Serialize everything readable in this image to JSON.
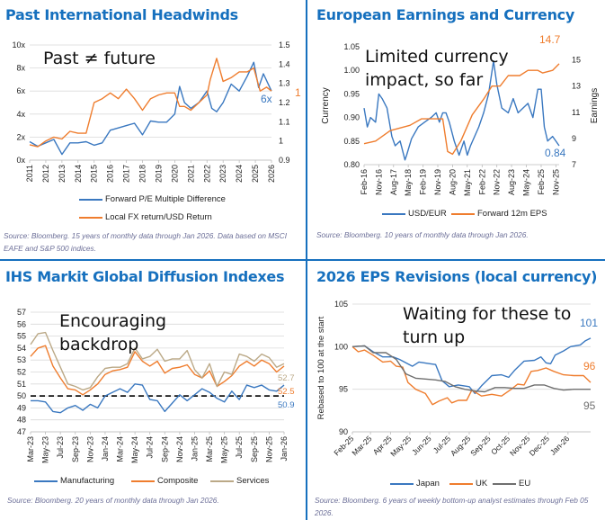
{
  "colors": {
    "divider": "#1670be",
    "blue": "#3a78c0",
    "orange": "#ef7d2e",
    "gray": "#6f6f6f",
    "tan": "#bba987",
    "grid": "#d9d9d9"
  },
  "chart_data": [
    {
      "type": "line",
      "title": "Past International Headwinds",
      "annotation": "Past ≠ future",
      "xlim": [
        2011,
        2026
      ],
      "x_tick_labels": [
        "2011",
        "2012",
        "2013",
        "2014",
        "2015",
        "2016",
        "2017",
        "2018",
        "2019",
        "2020",
        "2021",
        "2022",
        "2023",
        "2024",
        "2025",
        "2026"
      ],
      "y_left": {
        "lim": [
          0,
          10
        ],
        "ticks": [
          "0x",
          "2x",
          "4x",
          "6x",
          "8x",
          "10x"
        ]
      },
      "y_right": {
        "lim": [
          0.9,
          1.5
        ],
        "ticks": [
          "0.9",
          "1",
          "1.1",
          "1.2",
          "1.3",
          "1.4",
          "1.5"
        ]
      },
      "grid": true,
      "legend": "bottom",
      "series": [
        {
          "name": "Forward P/E Multiple Difference",
          "axis": "left",
          "color": "#3a78c0",
          "end_label": "6x",
          "x": [
            2011,
            2011.5,
            2012,
            2012.5,
            2013,
            2013.5,
            2014,
            2014.5,
            2015,
            2015.5,
            2016,
            2016.5,
            2017,
            2017.5,
            2018,
            2018.5,
            2019,
            2019.5,
            2020,
            2020.3,
            2020.6,
            2021,
            2021.5,
            2022,
            2022.3,
            2022.6,
            2023,
            2023.5,
            2024,
            2024.5,
            2024.9,
            2025.2,
            2025.5,
            2026
          ],
          "y": [
            1.6,
            1.2,
            1.5,
            1.8,
            0.5,
            1.5,
            1.5,
            1.6,
            1.3,
            1.5,
            2.6,
            2.8,
            3.0,
            3.2,
            2.2,
            3.4,
            3.3,
            3.3,
            4.0,
            6.4,
            5.0,
            4.5,
            5.0,
            6.0,
            4.5,
            4.2,
            5.0,
            6.6,
            6.0,
            7.3,
            8.5,
            6.3,
            7.5,
            6.0
          ]
        },
        {
          "name": "Local FX return/USD Return",
          "axis": "right",
          "color": "#ef7d2e",
          "end_label": "1",
          "x": [
            2011,
            2011.5,
            2012,
            2012.5,
            2013,
            2013.5,
            2014,
            2014.5,
            2015,
            2015.5,
            2016,
            2016.5,
            2017,
            2017.5,
            2018,
            2018.5,
            2019,
            2019.5,
            2020,
            2020.3,
            2020.6,
            2021,
            2021.5,
            2022,
            2022.2,
            2022.6,
            2023,
            2023.5,
            2024,
            2024.5,
            2024.9,
            2025.3,
            2025.7,
            2026
          ],
          "y": [
            0.98,
            0.97,
            1.0,
            1.02,
            1.01,
            1.05,
            1.04,
            1.04,
            1.2,
            1.22,
            1.25,
            1.22,
            1.27,
            1.22,
            1.16,
            1.22,
            1.24,
            1.25,
            1.25,
            1.18,
            1.18,
            1.16,
            1.2,
            1.24,
            1.32,
            1.43,
            1.31,
            1.33,
            1.36,
            1.36,
            1.38,
            1.26,
            1.28,
            1.26
          ]
        }
      ],
      "source": "Source: Bloomberg. 15 years of monthly data through Jan 2026. Data based on MSCI EAFE and S&P 500 indices."
    },
    {
      "type": "line",
      "title": "European Earnings and Currency",
      "annotation": "Limited currency impact, so far",
      "xlim": [
        "2016-02",
        "2026-01"
      ],
      "x_tick_labels": [
        "Feb-16",
        "Nov-16",
        "Aug-17",
        "May-18",
        "Feb-19",
        "Nov-19",
        "Aug-20",
        "May-21",
        "Feb-22",
        "Nov-22",
        "Aug-23",
        "May-24",
        "Feb-25",
        "Nov-25"
      ],
      "y_left": {
        "label": "Currency",
        "lim": [
          0.8,
          1.05
        ],
        "ticks": [
          "0.80",
          "0.85",
          "0.90",
          "0.95",
          "1.00",
          "1.05"
        ]
      },
      "y_right": {
        "label": "Earnings",
        "lim": [
          7,
          16
        ],
        "ticks": [
          "7",
          "9",
          "11",
          "13",
          "15"
        ]
      },
      "grid": false,
      "legend": "bottom",
      "series": [
        {
          "name": "USD/EUR",
          "axis": "left",
          "color": "#3a78c0",
          "end_label": "0.84",
          "x": [
            "2016-02",
            "2016-04",
            "2016-06",
            "2016-09",
            "2016-11",
            "2017-01",
            "2017-04",
            "2017-07",
            "2017-09",
            "2017-12",
            "2018-03",
            "2018-04",
            "2018-07",
            "2018-11",
            "2019-03",
            "2019-07",
            "2019-10",
            "2019-12",
            "2020-02",
            "2020-04",
            "2020-06",
            "2020-09",
            "2020-12",
            "2021-03",
            "2021-05",
            "2021-07",
            "2021-12",
            "2022-03",
            "2022-06",
            "2022-09",
            "2022-11",
            "2023-02",
            "2023-06",
            "2023-09",
            "2023-12",
            "2024-03",
            "2024-06",
            "2024-09",
            "2024-12",
            "2025-02",
            "2025-04",
            "2025-06",
            "2025-09",
            "2026-01"
          ],
          "y": [
            0.92,
            0.88,
            0.9,
            0.89,
            0.95,
            0.94,
            0.92,
            0.86,
            0.84,
            0.85,
            0.81,
            0.82,
            0.855,
            0.88,
            0.89,
            0.9,
            0.91,
            0.89,
            0.91,
            0.91,
            0.89,
            0.85,
            0.82,
            0.85,
            0.82,
            0.84,
            0.88,
            0.91,
            0.95,
            1.02,
            0.97,
            0.92,
            0.91,
            0.94,
            0.91,
            0.92,
            0.93,
            0.9,
            0.96,
            0.96,
            0.88,
            0.85,
            0.86,
            0.84
          ]
        },
        {
          "name": "Forward 12m EPS",
          "axis": "right",
          "color": "#ef7d2e",
          "end_label": "14.7",
          "x": [
            "2016-02",
            "2016-09",
            "2017-06",
            "2018-06",
            "2019-01",
            "2019-06",
            "2020-02",
            "2020-05",
            "2020-08",
            "2021-01",
            "2021-08",
            "2022-03",
            "2022-08",
            "2023-01",
            "2023-06",
            "2024-01",
            "2024-06",
            "2024-12",
            "2025-03",
            "2025-09",
            "2026-01"
          ],
          "y": [
            8.6,
            8.8,
            9.6,
            10.0,
            10.5,
            10.5,
            10.5,
            8.0,
            7.8,
            8.8,
            10.8,
            12.0,
            13.0,
            13.0,
            13.8,
            13.8,
            14.2,
            14.2,
            14.0,
            14.2,
            14.7
          ]
        }
      ],
      "source": "Source: Bloomberg. 10 years of monthly data through Jan 2026."
    },
    {
      "type": "line",
      "title": "IHS Markit Global Diffusion Indexes",
      "annotation": "Encouraging backdrop",
      "categories": [
        "Mar-23",
        "Apr-23",
        "May-23",
        "Jun-23",
        "Jul-23",
        "Aug-23",
        "Sep-23",
        "Oct-23",
        "Nov-23",
        "Dec-23",
        "Jan-24",
        "Feb-24",
        "Mar-24",
        "Apr-24",
        "May-24",
        "Jun-24",
        "Jul-24",
        "Aug-24",
        "Sep-24",
        "Oct-24",
        "Nov-24",
        "Dec-24",
        "Jan-25",
        "Feb-25",
        "Mar-25",
        "Apr-25",
        "May-25",
        "Jun-25",
        "Jul-25",
        "Aug-25",
        "Sep-25",
        "Oct-25",
        "Nov-25",
        "Dec-25",
        "Jan-26"
      ],
      "x_tick_labels": [
        "Mar-23",
        "May-23",
        "Jul-23",
        "Sep-23",
        "Nov-23",
        "Jan-24",
        "Mar-24",
        "May-24",
        "Jul-24",
        "Sep-24",
        "Nov-24",
        "Jan-25",
        "Mar-25",
        "May-25",
        "Jul-25",
        "Sep-25",
        "Nov-25",
        "Jan-26"
      ],
      "y_left": {
        "lim": [
          47,
          57
        ],
        "ticks": [
          "47",
          "48",
          "49",
          "50",
          "51",
          "52",
          "53",
          "54",
          "55",
          "56",
          "57"
        ]
      },
      "reference_line": 50,
      "grid": true,
      "legend": "bottom",
      "series": [
        {
          "name": "Manufacturing",
          "color": "#3a78c0",
          "end_label": "50.9",
          "y": [
            49.6,
            49.6,
            49.5,
            48.7,
            48.6,
            49.0,
            49.2,
            48.8,
            49.3,
            49.0,
            50.0,
            50.3,
            50.6,
            50.3,
            51.0,
            50.9,
            49.7,
            49.6,
            48.7,
            49.4,
            50.1,
            49.6,
            50.1,
            50.6,
            50.3,
            49.8,
            49.5,
            50.4,
            49.7,
            50.9,
            50.7,
            50.9,
            50.5,
            50.4,
            50.9
          ]
        },
        {
          "name": "Composite",
          "color": "#ef7d2e",
          "end_label": "52.5",
          "y": [
            53.3,
            54.0,
            54.2,
            52.5,
            51.5,
            50.6,
            50.5,
            50.1,
            50.5,
            51.0,
            51.8,
            52.1,
            52.2,
            52.4,
            53.7,
            52.9,
            52.5,
            52.9,
            51.9,
            52.3,
            52.4,
            52.6,
            51.8,
            51.5,
            52.1,
            50.8,
            51.2,
            51.7,
            52.5,
            52.9,
            52.5,
            53.0,
            52.7,
            52.0,
            52.5
          ]
        },
        {
          "name": "Services",
          "color": "#bba987",
          "end_label": "52.7",
          "y": [
            54.3,
            55.2,
            55.3,
            53.8,
            52.4,
            51.0,
            50.8,
            50.5,
            50.7,
            51.6,
            52.3,
            52.4,
            52.4,
            52.7,
            54.0,
            53.1,
            53.3,
            53.9,
            52.9,
            53.1,
            53.1,
            53.8,
            52.2,
            51.5,
            52.7,
            50.8,
            52.0,
            51.8,
            53.5,
            53.3,
            52.9,
            53.5,
            53.2,
            52.4,
            52.7
          ]
        }
      ],
      "source": "Source: Bloomberg. 20 years of monthly data through Jan 2026."
    },
    {
      "type": "line",
      "title": "2026 EPS Revisions (local currency)",
      "annotation": "Waiting for these to turn up",
      "xlim": [
        "2025-02-01",
        "2026-02-05"
      ],
      "x_tick_labels": [
        "Feb-25",
        "Mar-25",
        "Apr-25",
        "May-25",
        "Jun-25",
        "Jul-25",
        "Aug-25",
        "Sep-25",
        "Oct-25",
        "Nov-25",
        "Dec-25",
        "Jan-26"
      ],
      "y_left": {
        "label": "Rebased to 100 at the start",
        "lim": [
          90,
          105
        ],
        "ticks": [
          "90",
          "95",
          "100",
          "105"
        ]
      },
      "grid": true,
      "legend": "bottom",
      "series": [
        {
          "name": "Japan",
          "color": "#3a78c0",
          "end_label": "101",
          "x": [
            "2025-02-01",
            "2025-02-20",
            "2025-03-05",
            "2025-03-20",
            "2025-04-05",
            "2025-04-15",
            "2025-05-05",
            "2025-05-15",
            "2025-06-01",
            "2025-06-10",
            "2025-06-20",
            "2025-07-01",
            "2025-07-15",
            "2025-08-01",
            "2025-08-10",
            "2025-08-20",
            "2025-09-05",
            "2025-09-20",
            "2025-10-01",
            "2025-10-10",
            "2025-10-25",
            "2025-11-10",
            "2025-11-20",
            "2025-11-28",
            "2025-12-05",
            "2025-12-12",
            "2025-12-25",
            "2026-01-05",
            "2026-01-20",
            "2026-01-28",
            "2026-02-05"
          ],
          "y": [
            100,
            100.1,
            99.4,
            98.8,
            98.8,
            98.5,
            97.7,
            98.2,
            98.0,
            97.9,
            96.0,
            95.3,
            95.5,
            95.3,
            94.5,
            95.4,
            96.6,
            96.7,
            96.4,
            97.2,
            98.3,
            98.4,
            98.8,
            98.1,
            98.0,
            99.0,
            99.5,
            100.0,
            100.2,
            100.7,
            101.0
          ]
        },
        {
          "name": "UK",
          "color": "#ef7d2e",
          "end_label": "96",
          "x": [
            "2025-02-01",
            "2025-02-10",
            "2025-02-20",
            "2025-03-05",
            "2025-03-20",
            "2025-04-01",
            "2025-04-10",
            "2025-04-20",
            "2025-04-28",
            "2025-05-10",
            "2025-05-25",
            "2025-06-05",
            "2025-06-15",
            "2025-06-28",
            "2025-07-05",
            "2025-07-15",
            "2025-07-28",
            "2025-08-05",
            "2025-08-20",
            "2025-09-05",
            "2025-09-20",
            "2025-10-05",
            "2025-10-15",
            "2025-10-25",
            "2025-11-05",
            "2025-11-15",
            "2025-11-28",
            "2025-12-10",
            "2025-12-25",
            "2026-01-10",
            "2026-01-25",
            "2026-02-05"
          ],
          "y": [
            100,
            99.4,
            99.6,
            99.0,
            98.2,
            98.3,
            97.7,
            97.6,
            95.8,
            95.0,
            94.5,
            93.2,
            93.6,
            94.0,
            93.4,
            93.7,
            93.7,
            94.9,
            94.2,
            94.4,
            94.2,
            95.0,
            95.6,
            95.5,
            97.1,
            97.2,
            97.5,
            97.1,
            96.7,
            96.6,
            96.6,
            95.8
          ]
        },
        {
          "name": "EU",
          "color": "#6f6f6f",
          "end_label": "95",
          "x": [
            "2025-02-01",
            "2025-02-20",
            "2025-03-05",
            "2025-03-25",
            "2025-04-10",
            "2025-04-25",
            "2025-05-10",
            "2025-05-25",
            "2025-06-10",
            "2025-06-25",
            "2025-07-10",
            "2025-07-25",
            "2025-08-10",
            "2025-08-25",
            "2025-09-10",
            "2025-09-25",
            "2025-10-10",
            "2025-10-25",
            "2025-11-10",
            "2025-11-25",
            "2025-12-10",
            "2025-12-25",
            "2026-01-10",
            "2026-01-25",
            "2026-02-05"
          ],
          "y": [
            100,
            100.1,
            99.3,
            99.3,
            98.5,
            96.8,
            96.3,
            96.2,
            96.1,
            95.9,
            95.3,
            95.0,
            94.8,
            94.7,
            95.2,
            95.2,
            95.1,
            95.1,
            95.5,
            95.5,
            95.1,
            94.9,
            95.0,
            95.0,
            95.0
          ]
        }
      ],
      "source": "Source: Bloomberg. 6 years of weekly bottom-up analyst estimates through Feb 05 2026."
    }
  ]
}
